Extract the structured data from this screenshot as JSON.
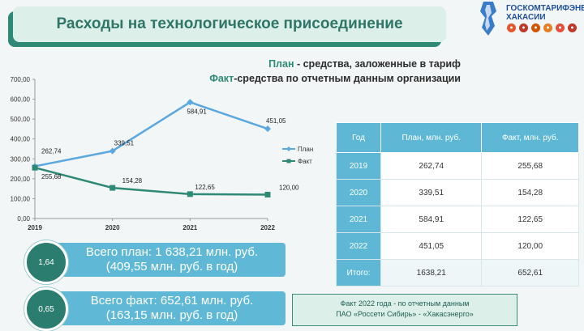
{
  "header": {
    "title": "Расходы на технологическое присоединение",
    "logo_line1": "ГОСКОМТАРИФЭНЕР",
    "logo_line2": "ХАКАСИИ"
  },
  "legend_text": {
    "plan_word": "План",
    "plan_rest": " - средства, заложенные в тариф",
    "fact_word": "Факт",
    "fact_rest": "-средства по отчетным данным организации"
  },
  "chart_data": {
    "type": "line",
    "x": [
      "2019",
      "2020",
      "2021",
      "2022"
    ],
    "series": [
      {
        "name": "План",
        "values": [
          262.74,
          339.51,
          584.91,
          451.05
        ],
        "labels": [
          "262,74",
          "339,51",
          "584,91",
          "451,05"
        ],
        "color": "#5aa8e0"
      },
      {
        "name": "Факт",
        "values": [
          255.68,
          154.28,
          122.65,
          120.0
        ],
        "labels": [
          "255,68",
          "154,28",
          "122,65",
          "120,00"
        ],
        "color": "#2e8a76"
      }
    ],
    "ylim": [
      0,
      700
    ],
    "y_ticks": [
      "0,00",
      "100,00",
      "200,00",
      "300,00",
      "400,00",
      "500,00",
      "600,00",
      "700,00"
    ],
    "grid": false,
    "legend_position": "right"
  },
  "table": {
    "headers": [
      "Год",
      "План, млн. руб.",
      "Факт, млн. руб."
    ],
    "rows": [
      [
        "2019",
        "262,74",
        "255,68"
      ],
      [
        "2020",
        "339,51",
        "154,28"
      ],
      [
        "2021",
        "584,91",
        "122,65"
      ],
      [
        "2022",
        "451,05",
        "120,00"
      ],
      [
        "Итого:",
        "1638,21",
        "652,61"
      ]
    ]
  },
  "summary": {
    "plan_ratio": "1,64",
    "plan_line1": "Всего план: 1 638,21 млн. руб.",
    "plan_line2": "(409,55 млн. руб. в год)",
    "fact_ratio": "0,65",
    "fact_line1": "Всего факт: 652,61 млн. руб.",
    "fact_line2": "(163,15 млн. руб. в год)"
  },
  "note": {
    "line1": "Факт 2022 года - по отчетным данным",
    "line2": "ПАО «Россети Сибирь» - «Хакасэнерго»"
  },
  "colors": {
    "accent": "#2e8a76",
    "table_header": "#5db7d5",
    "plan_line": "#5aa8e0",
    "fact_line": "#2e8a76"
  }
}
